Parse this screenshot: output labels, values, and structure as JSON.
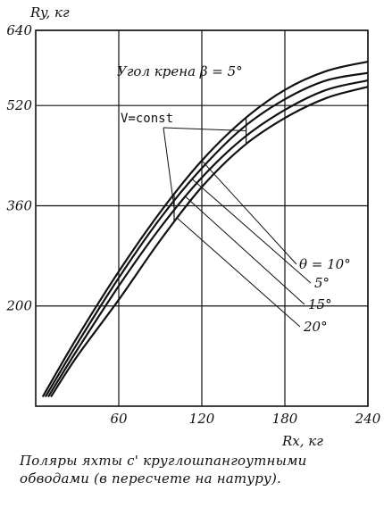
{
  "chart_data": {
    "type": "line",
    "title": "Угол крена β = 5°",
    "annotation": "V=const",
    "xlabel": "Rx, кг",
    "ylabel": "Ry, кг",
    "xlim": [
      0,
      240
    ],
    "ylim": [
      40,
      640
    ],
    "x_ticks": [
      60,
      120,
      180,
      240
    ],
    "y_ticks": [
      200,
      360,
      520,
      640
    ],
    "x_tick_labels": [
      "60",
      "120",
      "180",
      "240"
    ],
    "y_tick_labels": [
      "200",
      "360",
      "520",
      "640"
    ],
    "grid": true,
    "series": [
      {
        "name": "θ = 10°",
        "x": [
          5,
          30,
          60,
          90,
          120,
          150,
          180,
          210,
          240
        ],
        "y": [
          55,
          150,
          255,
          350,
          432,
          497,
          545,
          575,
          590
        ]
      },
      {
        "name": "5°",
        "x": [
          7,
          30,
          60,
          90,
          120,
          150,
          180,
          210,
          240
        ],
        "y": [
          55,
          140,
          245,
          340,
          420,
          485,
          530,
          560,
          572
        ]
      },
      {
        "name": "15°",
        "x": [
          9,
          30,
          60,
          90,
          120,
          150,
          180,
          210,
          240
        ],
        "y": [
          55,
          130,
          232,
          325,
          405,
          468,
          513,
          545,
          560
        ]
      },
      {
        "name": "20°",
        "x": [
          11,
          30,
          60,
          90,
          120,
          150,
          180,
          210,
          240
        ],
        "y": [
          55,
          120,
          210,
          305,
          390,
          455,
          500,
          532,
          550
        ]
      }
    ]
  },
  "caption": "Поляры яхты с' круглошпангоутными обводами (в пересчете на натуру)."
}
